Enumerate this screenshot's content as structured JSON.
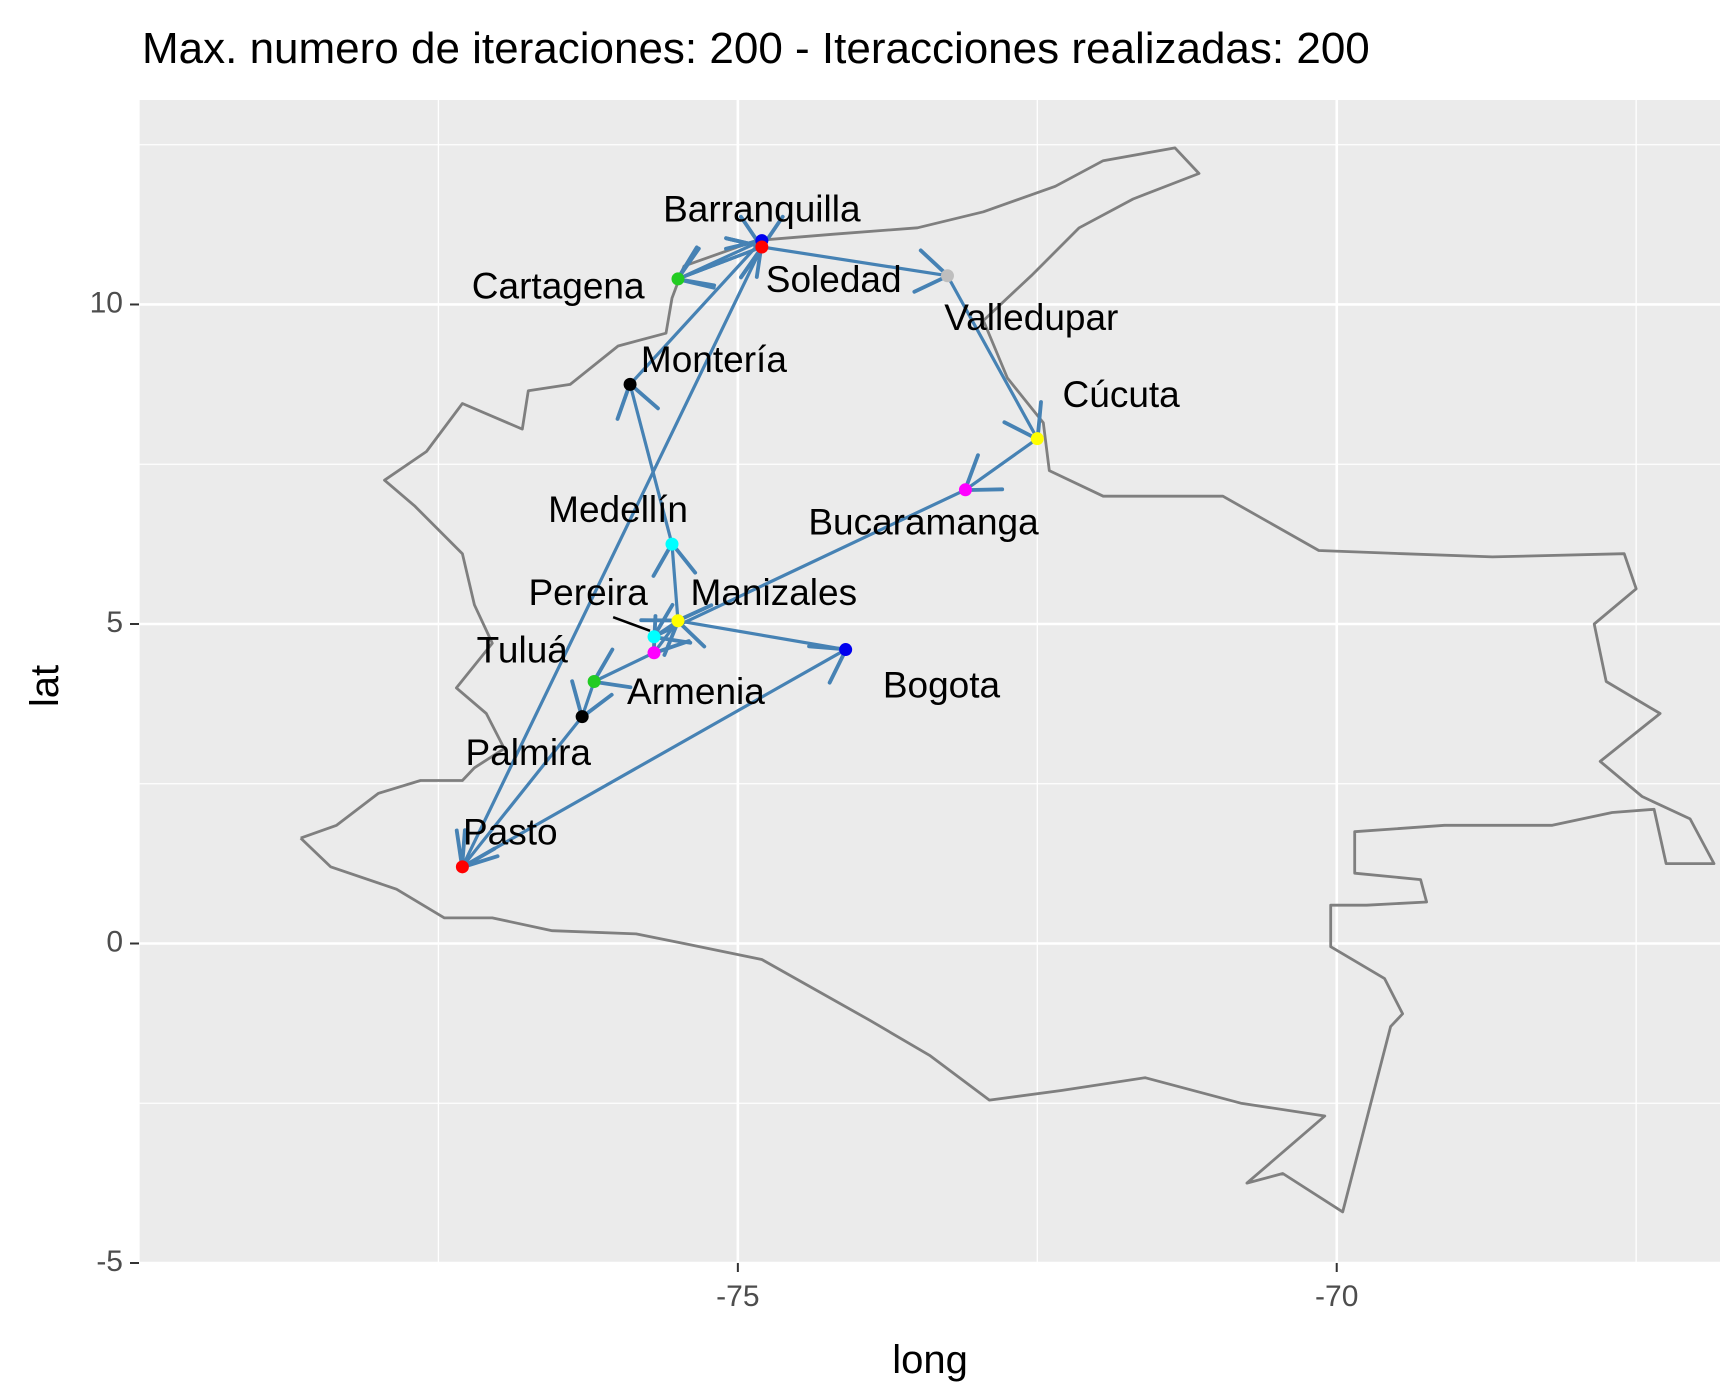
{
  "chart_data": {
    "type": "scatter",
    "title": "Max. numero de iteraciones: 200  - Iteracciones realizadas:  200",
    "xlabel": "long",
    "ylabel": "lat",
    "xlim": [
      -80,
      -66.8
    ],
    "ylim": [
      -5,
      13.2
    ],
    "x_ticks": [
      -75,
      -70
    ],
    "x_tick_labels": [
      "-75",
      "-70"
    ],
    "y_ticks": [
      -5,
      0,
      5,
      10
    ],
    "y_tick_labels": [
      "-5",
      "0",
      "5",
      "10"
    ],
    "grid": true,
    "legend": "none",
    "colors": {
      "panel": "#ebebeb",
      "grid": "#ffffff",
      "outline": "#7f7f7f",
      "route": "#4682b4"
    },
    "cities": [
      {
        "name": "Barranquilla",
        "long": -74.8,
        "lat": 11.0,
        "color": "#0000ee",
        "label_long": -74.8,
        "label_lat": 11.45
      },
      {
        "name": "Cartagena",
        "long": -75.5,
        "lat": 10.4,
        "color": "#22cc22",
        "label_long": -76.5,
        "label_lat": 10.25
      },
      {
        "name": "Soledad",
        "long": -74.8,
        "lat": 10.9,
        "color": "#ff0000",
        "label_long": -74.2,
        "label_lat": 10.35
      },
      {
        "name": "Valledupar",
        "long": -73.25,
        "lat": 10.45,
        "color": "#bebebe",
        "label_long": -72.55,
        "label_lat": 9.75
      },
      {
        "name": "Montería",
        "long": -75.9,
        "lat": 8.75,
        "color": "#000000",
        "label_long": -75.2,
        "label_lat": 9.1
      },
      {
        "name": "Cúcuta",
        "long": -72.5,
        "lat": 7.9,
        "color": "#ffff00",
        "label_long": -71.8,
        "label_lat": 8.55
      },
      {
        "name": "Bucaramanga",
        "long": -73.1,
        "lat": 7.1,
        "color": "#ff00ff",
        "label_long": -73.45,
        "label_lat": 6.55
      },
      {
        "name": "Medellín",
        "long": -75.55,
        "lat": 6.25,
        "color": "#00ffff",
        "label_long": -76.0,
        "label_lat": 6.75
      },
      {
        "name": "Pereira",
        "long": -75.7,
        "lat": 4.8,
        "color": "#00ffff",
        "label_long": -76.25,
        "label_lat": 5.45
      },
      {
        "name": "Manizales",
        "long": -75.5,
        "lat": 5.05,
        "color": "#ffff00",
        "label_long": -74.7,
        "label_lat": 5.45
      },
      {
        "name": "Armenia",
        "long": -75.7,
        "lat": 4.55,
        "color": "#ff00ff",
        "label_long": -75.35,
        "label_lat": 3.9
      },
      {
        "name": "Tuluá",
        "long": -76.2,
        "lat": 4.1,
        "color": "#22cc22",
        "label_long": -76.8,
        "label_lat": 4.55
      },
      {
        "name": "Bogota",
        "long": -74.1,
        "lat": 4.6,
        "color": "#0000ee",
        "label_long": -73.3,
        "label_lat": 4.0
      },
      {
        "name": "Palmira",
        "long": -76.3,
        "lat": 3.55,
        "color": "#000000",
        "label_long": -76.75,
        "label_lat": 2.95
      },
      {
        "name": "Pasto",
        "long": -77.3,
        "lat": 1.2,
        "color": "#ff0000",
        "label_long": -76.9,
        "label_lat": 1.7
      }
    ],
    "route": [
      "Barranquilla",
      "Cartagena",
      "Soledad",
      "Valledupar",
      "Cúcuta",
      "Bucaramanga",
      "Pereira",
      "Manizales",
      "Medellín",
      "Montería",
      "Barranquilla",
      "Soledad",
      "Cartagena",
      "Soledad",
      "Pasto",
      "Bogota",
      "Manizales",
      "Armenia",
      "Tuluá",
      "Palmira",
      "Pasto"
    ],
    "outline": [
      [
        -78.65,
        1.65
      ],
      [
        -78.35,
        1.85
      ],
      [
        -78.0,
        2.35
      ],
      [
        -77.65,
        2.55
      ],
      [
        -77.3,
        2.55
      ],
      [
        -77.2,
        2.75
      ],
      [
        -76.95,
        3.05
      ],
      [
        -77.1,
        3.6
      ],
      [
        -77.35,
        4.0
      ],
      [
        -77.05,
        4.7
      ],
      [
        -77.2,
        5.3
      ],
      [
        -77.3,
        6.1
      ],
      [
        -77.7,
        6.85
      ],
      [
        -77.95,
        7.25
      ],
      [
        -77.6,
        7.7
      ],
      [
        -77.3,
        8.45
      ],
      [
        -76.8,
        8.05
      ],
      [
        -76.75,
        8.65
      ],
      [
        -76.4,
        8.75
      ],
      [
        -76.0,
        9.35
      ],
      [
        -75.6,
        9.55
      ],
      [
        -75.55,
        10.1
      ],
      [
        -75.45,
        10.6
      ],
      [
        -74.85,
        11.0
      ],
      [
        -74.2,
        11.1
      ],
      [
        -73.5,
        11.2
      ],
      [
        -72.95,
        11.45
      ],
      [
        -72.35,
        11.85
      ],
      [
        -71.95,
        12.25
      ],
      [
        -71.35,
        12.45
      ],
      [
        -71.15,
        12.05
      ],
      [
        -71.7,
        11.65
      ],
      [
        -72.15,
        11.2
      ],
      [
        -72.55,
        10.45
      ],
      [
        -72.95,
        9.75
      ],
      [
        -72.75,
        8.85
      ],
      [
        -72.45,
        8.15
      ],
      [
        -72.4,
        7.4
      ],
      [
        -71.95,
        7.0
      ],
      [
        -70.95,
        7.0
      ],
      [
        -70.15,
        6.15
      ],
      [
        -69.45,
        6.1
      ],
      [
        -68.7,
        6.05
      ],
      [
        -67.6,
        6.1
      ],
      [
        -67.5,
        5.55
      ],
      [
        -67.85,
        5.0
      ],
      [
        -67.75,
        4.1
      ],
      [
        -67.3,
        3.6
      ],
      [
        -67.8,
        2.85
      ],
      [
        -67.45,
        2.3
      ],
      [
        -67.05,
        1.95
      ],
      [
        -66.85,
        1.25
      ],
      [
        -67.25,
        1.25
      ],
      [
        -67.35,
        2.1
      ],
      [
        -67.7,
        2.05
      ],
      [
        -68.2,
        1.85
      ],
      [
        -69.1,
        1.85
      ],
      [
        -69.85,
        1.75
      ],
      [
        -69.85,
        1.1
      ],
      [
        -69.3,
        1.0
      ],
      [
        -69.25,
        0.65
      ],
      [
        -69.75,
        0.6
      ],
      [
        -70.05,
        0.6
      ],
      [
        -70.05,
        -0.05
      ],
      [
        -69.6,
        -0.55
      ],
      [
        -69.45,
        -1.1
      ],
      [
        -69.55,
        -1.3
      ],
      [
        -69.95,
        -4.2
      ],
      [
        -70.45,
        -3.6
      ],
      [
        -70.75,
        -3.75
      ],
      [
        -70.1,
        -2.7
      ],
      [
        -70.8,
        -2.5
      ],
      [
        -71.6,
        -2.1
      ],
      [
        -72.3,
        -2.3
      ],
      [
        -72.9,
        -2.45
      ],
      [
        -73.4,
        -1.75
      ],
      [
        -73.9,
        -1.2
      ],
      [
        -74.8,
        -0.25
      ],
      [
        -75.45,
        0.0
      ],
      [
        -75.85,
        0.15
      ],
      [
        -76.55,
        0.2
      ],
      [
        -77.05,
        0.4
      ],
      [
        -77.45,
        0.4
      ],
      [
        -77.85,
        0.85
      ],
      [
        -78.4,
        1.2
      ],
      [
        -78.65,
        1.65
      ]
    ]
  }
}
